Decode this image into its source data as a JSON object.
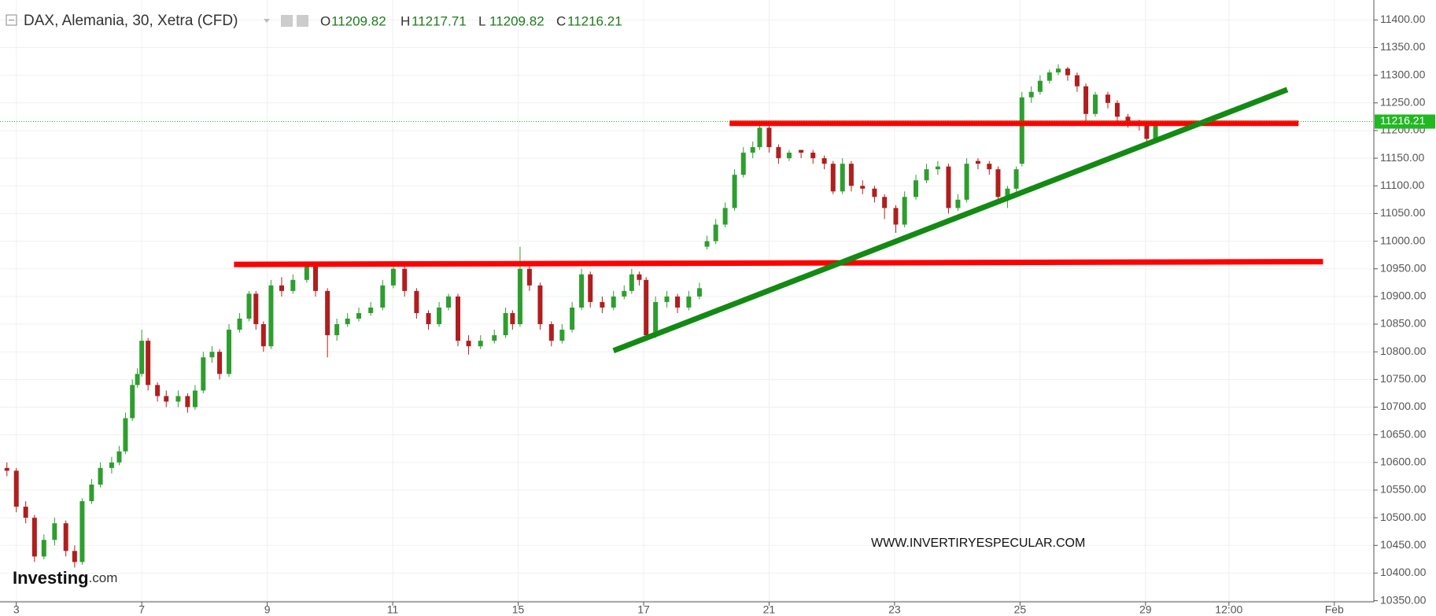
{
  "chart_data": {
    "type": "candlestick",
    "title": "DAX, Alemania, 30, Xetra (CFD)",
    "ohlc_labels": [
      "O",
      "H",
      "L",
      "C"
    ],
    "watermark": "WWW.INVERTIRYESPECULAR.COM",
    "logo": {
      "name": "Investing",
      "suffix": ".com"
    },
    "up_color": "#2e9e2e",
    "down_color": "#b01e1e",
    "grid": true,
    "xlim": [
      -0.26,
      21.64
    ],
    "ylim": [
      10348,
      11436
    ],
    "xticks": [
      {
        "value": 0,
        "label": "3"
      },
      {
        "value": 2,
        "label": "7"
      },
      {
        "value": 4,
        "label": "9"
      },
      {
        "value": 6,
        "label": "11"
      },
      {
        "value": 8,
        "label": "15"
      },
      {
        "value": 10,
        "label": "17"
      },
      {
        "value": 12,
        "label": "21"
      },
      {
        "value": 14,
        "label": "23"
      },
      {
        "value": 16,
        "label": "25"
      },
      {
        "value": 18,
        "label": "29"
      },
      {
        "value": 19.33,
        "label": "12:00"
      },
      {
        "value": 21.01,
        "label": "Feb"
      }
    ],
    "yticks": [
      {
        "value": 10350,
        "label": "10350.00"
      },
      {
        "value": 10400,
        "label": "10400.00"
      },
      {
        "value": 10450,
        "label": "10450.00"
      },
      {
        "value": 10500,
        "label": "10500.00"
      },
      {
        "value": 10550,
        "label": "10550.00"
      },
      {
        "value": 10600,
        "label": "10600.00"
      },
      {
        "value": 10650,
        "label": "10650.00"
      },
      {
        "value": 10700,
        "label": "10700.00"
      },
      {
        "value": 10750,
        "label": "10750.00"
      },
      {
        "value": 10800,
        "label": "10800.00"
      },
      {
        "value": 10850,
        "label": "10850.00"
      },
      {
        "value": 10900,
        "label": "10900.00"
      },
      {
        "value": 10950,
        "label": "10950.00"
      },
      {
        "value": 11000,
        "label": "11000.00"
      },
      {
        "value": 11050,
        "label": "11050.00"
      },
      {
        "value": 11100,
        "label": "11100.00"
      },
      {
        "value": 11150,
        "label": "11150.00"
      },
      {
        "value": 11200,
        "label": "11200.00"
      },
      {
        "value": 11250,
        "label": "11250.00"
      },
      {
        "value": 11300,
        "label": "11300.00"
      },
      {
        "value": 11350,
        "label": "11350.00"
      },
      {
        "value": 11400,
        "label": "11400.00"
      }
    ],
    "x": [
      -0.15,
      0,
      0.15,
      0.29,
      0.44,
      0.61,
      0.79,
      0.93,
      1.05,
      1.2,
      1.34,
      1.52,
      1.64,
      1.74,
      1.85,
      1.93,
      2.0,
      2.1,
      2.25,
      2.39,
      2.58,
      2.73,
      2.85,
      2.98,
      3.12,
      3.24,
      3.39,
      3.56,
      3.71,
      3.82,
      3.94,
      4.06,
      4.23,
      4.41,
      4.63,
      4.77,
      4.96,
      5.11,
      5.28,
      5.46,
      5.65,
      5.84,
      6.01,
      6.19,
      6.38,
      6.57,
      6.74,
      6.89,
      7.04,
      7.21,
      7.4,
      7.62,
      7.8,
      7.91,
      8.03,
      8.18,
      8.35,
      8.53,
      8.7,
      8.86,
      9.01,
      9.15,
      9.34,
      9.52,
      9.69,
      9.81,
      9.93,
      10.04,
      10.19,
      10.37,
      10.54,
      10.72,
      10.89,
      11.01,
      11.15,
      11.3,
      11.45,
      11.59,
      11.74,
      11.85,
      12.0,
      12.15,
      12.32,
      12.51,
      12.7,
      12.88,
      13.02,
      13.17,
      13.31,
      13.49,
      13.68,
      13.84,
      14.02,
      14.16,
      14.34,
      14.51,
      14.69,
      14.86,
      15.01,
      15.15,
      15.33,
      15.51,
      15.65,
      15.8,
      15.94,
      16.03,
      16.18,
      16.32,
      16.47,
      16.61,
      16.76,
      16.91,
      17.05,
      17.2,
      17.4,
      17.55,
      17.72,
      17.9,
      18.02,
      18.16,
      18.31
    ],
    "open": [
      10590,
      10585,
      10520,
      10500,
      10430,
      10460,
      10490,
      10440,
      10420,
      10530,
      10560,
      10590,
      10600,
      10620,
      10680,
      10740,
      10760,
      10820,
      10740,
      10720,
      10710,
      10720,
      10700,
      10730,
      10790,
      10800,
      10760,
      10840,
      10860,
      10905,
      10850,
      10810,
      10920,
      10910,
      10930,
      10955,
      10910,
      10830,
      10850,
      10860,
      10870,
      10880,
      10920,
      10950,
      10910,
      10870,
      10850,
      10880,
      10900,
      10820,
      10810,
      10820,
      10830,
      10870,
      10850,
      10950,
      10920,
      10850,
      10820,
      10840,
      10880,
      10940,
      10890,
      10880,
      10900,
      10910,
      10940,
      10930,
      10830,
      10890,
      10900,
      10880,
      10900,
      10990,
      11000,
      11030,
      11060,
      11120,
      11160,
      11170,
      11205,
      11170,
      11150,
      11165,
      11160,
      11150,
      11140,
      11090,
      11140,
      11100,
      11095,
      11080,
      11060,
      11030,
      11080,
      11110,
      11130,
      11135,
      11060,
      11075,
      11145,
      11140,
      11130,
      11080,
      11095,
      11140,
      11260,
      11270,
      11290,
      11305,
      11312,
      11300,
      11280,
      11230,
      11265,
      11250,
      11225,
      11212,
      11210,
      11185,
      11209.82
    ],
    "high": [
      10600,
      10590,
      10530,
      10505,
      10470,
      10500,
      10495,
      10450,
      10535,
      10570,
      10600,
      10610,
      10630,
      10690,
      10750,
      10770,
      10840,
      10825,
      10745,
      10730,
      10730,
      10725,
      10740,
      10800,
      10810,
      10805,
      10850,
      10870,
      10910,
      10910,
      10855,
      10930,
      10935,
      10940,
      10960,
      10960,
      10915,
      10860,
      10870,
      10880,
      10890,
      10930,
      10960,
      10955,
      10915,
      10875,
      10890,
      10905,
      10905,
      10830,
      10830,
      10840,
      10880,
      10875,
      10990,
      10955,
      10925,
      10855,
      10850,
      10890,
      10950,
      10945,
      10900,
      10910,
      10920,
      10950,
      10945,
      10935,
      10900,
      10910,
      10905,
      10910,
      10925,
      11010,
      11040,
      11070,
      11130,
      11170,
      11180,
      11215,
      11210,
      11175,
      11165,
      11165,
      11165,
      11155,
      11145,
      11150,
      11145,
      11110,
      11100,
      11085,
      11065,
      11090,
      11120,
      11140,
      11145,
      11140,
      11085,
      11150,
      11150,
      11145,
      11135,
      11100,
      11135,
      11270,
      11280,
      11300,
      11310,
      11320,
      11315,
      11305,
      11285,
      11270,
      11270,
      11255,
      11230,
      11220,
      11215,
      11218,
      11217.71
    ],
    "low": [
      10575,
      10510,
      10490,
      10420,
      10425,
      10450,
      10430,
      10410,
      10415,
      10525,
      10555,
      10580,
      10595,
      10615,
      10675,
      10735,
      10755,
      10730,
      10710,
      10700,
      10700,
      10690,
      10695,
      10725,
      10780,
      10750,
      10755,
      10835,
      10855,
      10840,
      10800,
      10805,
      10900,
      10905,
      10925,
      10900,
      10790,
      10820,
      10845,
      10855,
      10865,
      10875,
      10915,
      10900,
      10860,
      10840,
      10845,
      10875,
      10810,
      10795,
      10805,
      10815,
      10825,
      10840,
      10845,
      10910,
      10840,
      10810,
      10815,
      10835,
      10875,
      10880,
      10870,
      10875,
      10895,
      10905,
      10920,
      10820,
      10825,
      10880,
      10870,
      10875,
      10895,
      10985,
      10995,
      11025,
      11055,
      11115,
      11150,
      11165,
      11160,
      11140,
      11145,
      11150,
      11140,
      11130,
      11085,
      11085,
      11090,
      11085,
      11070,
      11040,
      11015,
      11025,
      11075,
      11105,
      11120,
      11050,
      11055,
      11070,
      11130,
      11120,
      11070,
      11060,
      11090,
      11135,
      11250,
      11265,
      11285,
      11300,
      11290,
      11270,
      11215,
      11225,
      11240,
      11215,
      11205,
      11200,
      11170,
      11180,
      11209.82
    ],
    "close": [
      10585,
      10520,
      10500,
      10430,
      10460,
      10490,
      10440,
      10420,
      10530,
      10560,
      10590,
      10600,
      10620,
      10680,
      10740,
      10760,
      10820,
      10740,
      10720,
      10710,
      10720,
      10700,
      10730,
      10790,
      10800,
      10760,
      10840,
      10860,
      10905,
      10850,
      10810,
      10920,
      10910,
      10930,
      10955,
      10910,
      10830,
      10850,
      10860,
      10870,
      10880,
      10920,
      10950,
      10910,
      10870,
      10850,
      10880,
      10900,
      10820,
      10810,
      10820,
      10830,
      10870,
      10850,
      10950,
      10920,
      10850,
      10820,
      10840,
      10880,
      10940,
      10890,
      10880,
      10900,
      10910,
      10940,
      10930,
      10830,
      10890,
      10900,
      10880,
      10900,
      10915,
      11000,
      11030,
      11060,
      11120,
      11160,
      11170,
      11205,
      11170,
      11150,
      11160,
      11160,
      11150,
      11140,
      11090,
      11140,
      11100,
      11095,
      11080,
      11060,
      11030,
      11080,
      11110,
      11130,
      11135,
      11060,
      11075,
      11140,
      11140,
      11130,
      11080,
      11095,
      11130,
      11260,
      11270,
      11290,
      11305,
      11312,
      11300,
      11280,
      11230,
      11265,
      11250,
      11225,
      11212,
      11210,
      11185,
      11212,
      11216.21
    ],
    "price_line_color": "#22b822",
    "annotation_lines": [
      {
        "color": "#ff0000",
        "x": [
          3.47,
          20.83
        ],
        "y": [
          10958,
          10963
        ]
      },
      {
        "color": "#ff0000",
        "x": [
          11.37,
          20.44
        ],
        "y": [
          11213,
          11213
        ]
      },
      {
        "color": "#138a13",
        "x": [
          9.52,
          20.26
        ],
        "y": [
          10802,
          11274
        ]
      }
    ]
  }
}
